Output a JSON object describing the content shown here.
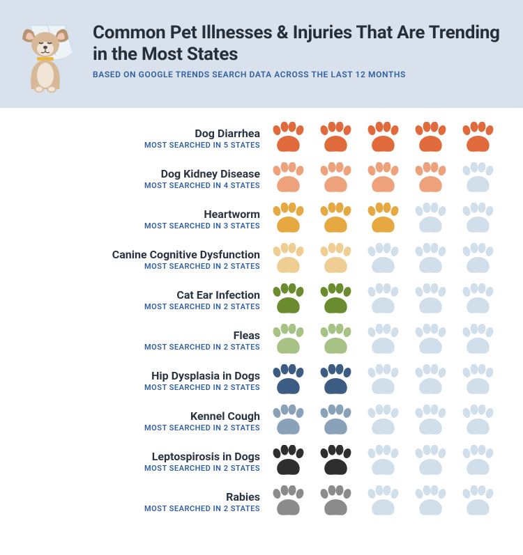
{
  "header": {
    "title": "Common Pet Illnesses & Injuries That Are Trending in the Most States",
    "subtitle": "BASED ON GOOGLE TRENDS SEARCH DATA ACROSS THE LAST 12 MONTHS",
    "bg_color": "#d9e2ec",
    "title_color": "#252e3a",
    "subtitle_color": "#2f5fa1",
    "title_fontsize": 26,
    "subtitle_fontsize": 12
  },
  "chart": {
    "type": "infographic",
    "max_paws": 5,
    "empty_paw_color": "#d0dfea",
    "background_color": "#ffffff",
    "name_color": "#2a3340",
    "sub_color": "#2f5fa1",
    "name_fontsize": 16,
    "sub_fontsize": 11,
    "items": [
      {
        "name": "Dog Diarrhea",
        "count": 5,
        "sub": "MOST SEARCHED IN 5 STATES",
        "paw_color": "#e06a3c"
      },
      {
        "name": "Dog Kidney Disease",
        "count": 4,
        "sub": "MOST SEARCHED IN 4 STATES",
        "paw_color": "#eda27c"
      },
      {
        "name": "Heartworm",
        "count": 3,
        "sub": "MOST SEARCHED IN 3 STATES",
        "paw_color": "#e6a942"
      },
      {
        "name": "Canine Cognitive Dysfunction",
        "count": 2,
        "sub": "MOST SEARCHED IN 2 STATES",
        "paw_color": "#efce93"
      },
      {
        "name": "Cat Ear Infection",
        "count": 2,
        "sub": "MOST SEARCHED IN 2 STATES",
        "paw_color": "#6b8b2f"
      },
      {
        "name": "Fleas",
        "count": 2,
        "sub": "MOST SEARCHED IN 2 STATES",
        "paw_color": "#a7c285"
      },
      {
        "name": "Hip Dysplasia in Dogs",
        "count": 2,
        "sub": "MOST SEARCHED IN 2 STATES",
        "paw_color": "#3d5c84"
      },
      {
        "name": "Kennel Cough",
        "count": 2,
        "sub": "MOST SEARCHED IN 2 STATES",
        "paw_color": "#8aa2b7"
      },
      {
        "name": "Leptospirosis in Dogs",
        "count": 2,
        "sub": "MOST SEARCHED IN 2 STATES",
        "paw_color": "#2e2e2e"
      },
      {
        "name": "Rabies",
        "count": 2,
        "sub": "MOST SEARCHED IN 2 STATES",
        "paw_color": "#8b8b8b"
      }
    ]
  },
  "dog_illustration": {
    "body_color": "#d7b998",
    "muzzle_color": "#f1e5d7",
    "ear_dark": "#b79571",
    "ear_inner": "#f0c6b6",
    "cone_stroke": "#d0dfea",
    "cone_fill": "#eef3f8",
    "collar": "#e8b83e",
    "nose": "#4a4a4a"
  }
}
